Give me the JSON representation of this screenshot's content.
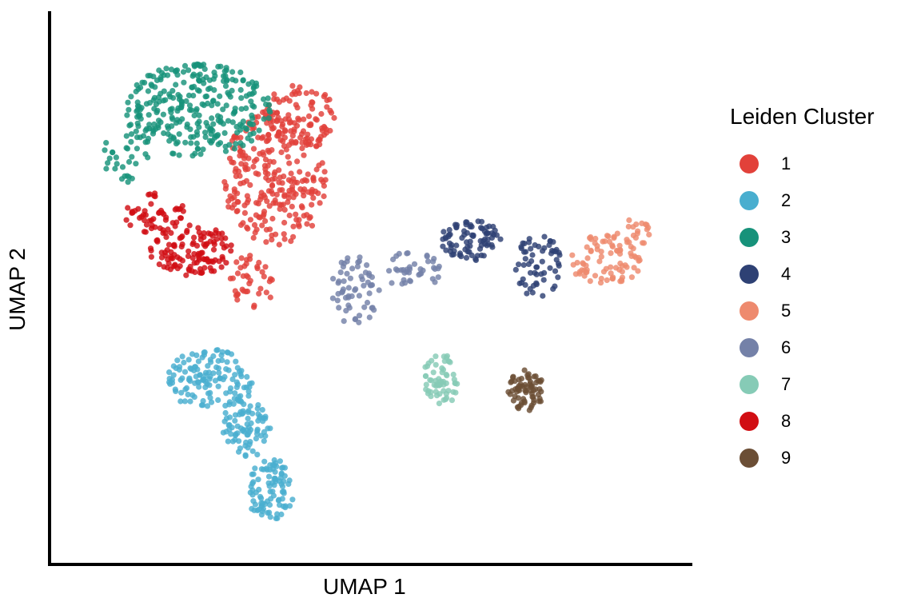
{
  "chart_data": {
    "type": "scatter",
    "xlabel": "UMAP 1",
    "ylabel": "UMAP 2",
    "legend_title": "Leiden Cluster",
    "legend_position": "right",
    "grid": false,
    "xlim": [
      0,
      100
    ],
    "ylim": [
      0,
      100
    ],
    "series": [
      {
        "name": "1",
        "color": "#E2413A",
        "regions": [
          {
            "cx": 35,
            "cy": 72,
            "rx": 9,
            "ry": 13,
            "n": 260
          },
          {
            "cx": 39,
            "cy": 84,
            "rx": 6,
            "ry": 6,
            "n": 90
          },
          {
            "cx": 31,
            "cy": 52,
            "rx": 4,
            "ry": 5,
            "n": 40
          }
        ]
      },
      {
        "name": "2",
        "color": "#49AECF",
        "regions": [
          {
            "cx": 24,
            "cy": 33,
            "rx": 7,
            "ry": 6,
            "n": 130
          },
          {
            "cx": 30,
            "cy": 24,
            "rx": 4,
            "ry": 6,
            "n": 80
          },
          {
            "cx": 34,
            "cy": 12,
            "rx": 4,
            "ry": 6,
            "n": 90
          }
        ]
      },
      {
        "name": "3",
        "color": "#17927A",
        "regions": [
          {
            "cx": 22,
            "cy": 85,
            "rx": 12,
            "ry": 9,
            "n": 300
          },
          {
            "cx": 10,
            "cy": 76,
            "rx": 4,
            "ry": 5,
            "n": 30
          }
        ]
      },
      {
        "name": "4",
        "color": "#2E4174",
        "regions": [
          {
            "cx": 67,
            "cy": 60,
            "rx": 5,
            "ry": 4,
            "n": 80
          },
          {
            "cx": 78,
            "cy": 55,
            "rx": 4,
            "ry": 6,
            "n": 60
          }
        ]
      },
      {
        "name": "5",
        "color": "#EE8A6E",
        "regions": [
          {
            "cx": 89,
            "cy": 56,
            "rx": 6,
            "ry": 5,
            "n": 80
          },
          {
            "cx": 94,
            "cy": 61,
            "rx": 3,
            "ry": 3,
            "n": 20
          }
        ]
      },
      {
        "name": "6",
        "color": "#7481A8",
        "regions": [
          {
            "cx": 48,
            "cy": 50,
            "rx": 4,
            "ry": 7,
            "n": 60
          },
          {
            "cx": 57,
            "cy": 54,
            "rx": 5,
            "ry": 4,
            "n": 40
          }
        ]
      },
      {
        "name": "7",
        "color": "#86CBB6",
        "regions": [
          {
            "cx": 62,
            "cy": 33,
            "rx": 3,
            "ry": 5,
            "n": 60
          }
        ]
      },
      {
        "name": "8",
        "color": "#D10E13",
        "regions": [
          {
            "cx": 21,
            "cy": 58,
            "rx": 7,
            "ry": 5,
            "n": 120
          },
          {
            "cx": 15,
            "cy": 65,
            "rx": 5,
            "ry": 4,
            "n": 50
          }
        ]
      },
      {
        "name": "9",
        "color": "#6B4E35",
        "regions": [
          {
            "cx": 76,
            "cy": 31,
            "rx": 3,
            "ry": 4,
            "n": 70
          }
        ]
      }
    ]
  }
}
